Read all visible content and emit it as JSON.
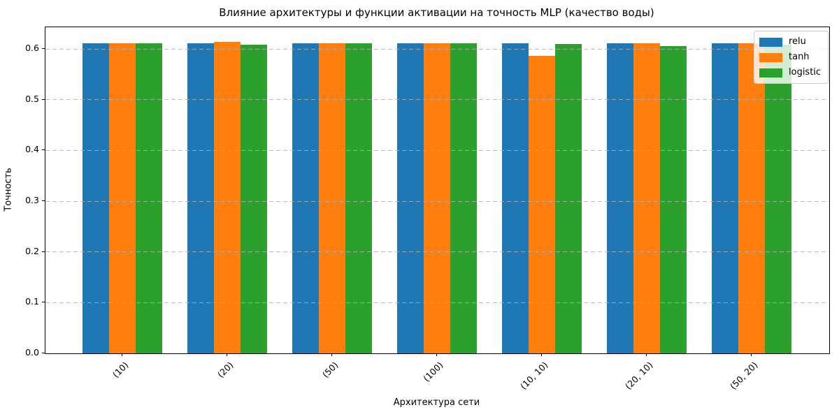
{
  "chart_data": {
    "type": "bar",
    "title": "Влияние архитектуры и функции активации на точность MLP (качество воды)",
    "xlabel": "Архитектура сети",
    "ylabel": "Точность",
    "categories": [
      "(10)",
      "(20)",
      "(50)",
      "(100)",
      "(10, 10)",
      "(20, 10)",
      "(50, 20)"
    ],
    "series": [
      {
        "name": "relu",
        "color": "#1f77b4",
        "values": [
          0.611,
          0.612,
          0.611,
          0.611,
          0.611,
          0.611,
          0.611
        ]
      },
      {
        "name": "tanh",
        "color": "#ff7f0e",
        "values": [
          0.611,
          0.614,
          0.611,
          0.611,
          0.586,
          0.611,
          0.612
        ]
      },
      {
        "name": "logistic",
        "color": "#2ca02c",
        "values": [
          0.611,
          0.609,
          0.611,
          0.611,
          0.61,
          0.606,
          0.609
        ]
      }
    ],
    "ylim": [
      0,
      0.643
    ],
    "yticks": [
      "0.0",
      "0.1",
      "0.2",
      "0.3",
      "0.4",
      "0.5",
      "0.6"
    ],
    "grid": "horizontal-dashed",
    "legend_position": "upper right"
  }
}
